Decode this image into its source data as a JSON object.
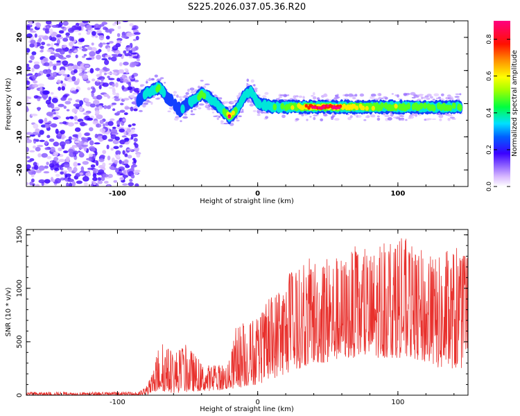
{
  "title": "S225.2026.037.05.36.R20",
  "chart_data": [
    {
      "type": "heatmap",
      "title": "S225.2026.037.05.36.R20",
      "xlabel": "Height of straight line (km)",
      "ylabel": "Frequency (Hz)",
      "xlim": [
        -165,
        150
      ],
      "ylim": [
        -25,
        25
      ],
      "xticks": [
        -100,
        0,
        100
      ],
      "xtick_labels": [
        "-100",
        "0",
        "100"
      ],
      "yticks": [
        -20,
        -10,
        0,
        10,
        20
      ],
      "ytick_labels": [
        "-20",
        "-10",
        "0",
        "10",
        "20"
      ],
      "colorbar": {
        "label": "Normalized spectral amplitude",
        "range": [
          0.0,
          0.9
        ],
        "ticks": [
          0.0,
          0.2,
          0.4,
          0.6,
          0.8
        ],
        "tick_labels": [
          "0.0",
          "0.2",
          "0.4",
          "0.6",
          "0.8"
        ]
      },
      "noise_region_x": [
        -165,
        -85
      ],
      "ridge": {
        "x": [
          -85,
          -80,
          -75,
          -70,
          -65,
          -60,
          -55,
          -50,
          -45,
          -40,
          -35,
          -30,
          -25,
          -20,
          -15,
          -10,
          -5,
          0,
          10,
          20,
          30,
          40,
          50,
          60,
          70,
          80,
          90,
          100,
          110,
          120,
          130,
          140,
          145
        ],
        "freq": [
          1,
          3,
          4,
          5,
          2,
          0,
          -2,
          0,
          1,
          3,
          2,
          0,
          -2,
          -4,
          -2,
          2,
          4,
          0,
          -1,
          -1,
          -1,
          -1,
          -1,
          -1,
          -1,
          -1,
          -1,
          -1,
          -1,
          -1,
          -1,
          -1,
          -1
        ],
        "amplitude": [
          0.25,
          0.3,
          0.35,
          0.45,
          0.25,
          0.15,
          0.25,
          0.3,
          0.35,
          0.45,
          0.4,
          0.3,
          0.35,
          0.75,
          0.3,
          0.3,
          0.35,
          0.3,
          0.35,
          0.45,
          0.6,
          0.85,
          0.9,
          0.7,
          0.6,
          0.55,
          0.45,
          0.5,
          0.45,
          0.45,
          0.4,
          0.4,
          0.55
        ]
      }
    },
    {
      "type": "line",
      "xlabel": "Height of straight line (km)",
      "ylabel": "SNR (10 * v/v)",
      "xlim": [
        -165,
        150
      ],
      "ylim": [
        0,
        1550
      ],
      "xticks": [
        -100,
        0,
        100
      ],
      "xtick_labels": [
        "-100",
        "0",
        "100"
      ],
      "yticks": [
        0,
        500,
        1000,
        1500
      ],
      "ytick_labels": [
        "0",
        "500",
        "1000",
        "1500"
      ],
      "color": "#e8302c",
      "envelope": {
        "x": [
          -165,
          -85,
          -80,
          -75,
          -70,
          -60,
          -50,
          -40,
          -30,
          -20,
          -15,
          -10,
          0,
          10,
          20,
          30,
          40,
          50,
          60,
          70,
          80,
          90,
          100,
          110,
          120,
          130,
          140,
          150
        ],
        "min": [
          0,
          0,
          0,
          20,
          40,
          20,
          30,
          40,
          40,
          60,
          60,
          80,
          100,
          150,
          200,
          250,
          300,
          300,
          350,
          350,
          350,
          350,
          350,
          350,
          300,
          250,
          250,
          250
        ],
        "max": [
          30,
          30,
          80,
          200,
          520,
          420,
          480,
          300,
          280,
          330,
          680,
          700,
          720,
          950,
          1150,
          1200,
          1330,
          1350,
          1300,
          1400,
          1350,
          1480,
          1550,
          1400,
          1350,
          1300,
          1400,
          1300
        ]
      }
    }
  ]
}
